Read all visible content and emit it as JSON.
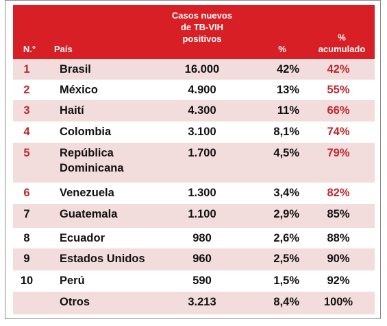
{
  "header": {
    "no": "N.°",
    "pais": "País",
    "casos": [
      "Casos nuevos",
      "de TB-VIH",
      "positivos"
    ],
    "pct": "%",
    "acum": [
      "%",
      "acumulado"
    ]
  },
  "rows": [
    {
      "no": "1",
      "pais": [
        "Brasil"
      ],
      "casos": "16.000",
      "pct": "42%",
      "acum": "42%",
      "red_no": true,
      "red_acum": true
    },
    {
      "no": "2",
      "pais": [
        "México"
      ],
      "casos": "4.900",
      "pct": "13%",
      "acum": "55%",
      "red_no": true,
      "red_acum": true
    },
    {
      "no": "3",
      "pais": [
        "Haití"
      ],
      "casos": "4.300",
      "pct": "11%",
      "acum": "66%",
      "red_no": true,
      "red_acum": true
    },
    {
      "no": "4",
      "pais": [
        "Colombia"
      ],
      "casos": "3.100",
      "pct": "8,1%",
      "acum": "74%",
      "red_no": true,
      "red_acum": true
    },
    {
      "no": "5",
      "pais": [
        "República",
        "Dominicana"
      ],
      "casos": "1.700",
      "pct": "4,5%",
      "acum": "79%",
      "red_no": true,
      "red_acum": true
    },
    {
      "no": "6",
      "pais": [
        "Venezuela"
      ],
      "casos": "1.300",
      "pct": "3,4%",
      "acum": "82%",
      "red_no": true,
      "red_acum": true
    },
    {
      "no": "7",
      "pais": [
        "Guatemala"
      ],
      "casos": "1.100",
      "pct": "2,9%",
      "acum": "85%",
      "red_no": false,
      "red_acum": false
    },
    {
      "no": "8",
      "pais": [
        "Ecuador"
      ],
      "casos": "980",
      "pct": "2,6%",
      "acum": "88%",
      "red_no": false,
      "red_acum": false
    },
    {
      "no": "9",
      "pais": [
        "Estados Unidos"
      ],
      "casos": "960",
      "pct": "2,5%",
      "acum": "90%",
      "red_no": false,
      "red_acum": false
    },
    {
      "no": "10",
      "pais": [
        "Perú"
      ],
      "casos": "590",
      "pct": "1,5%",
      "acum": "92%",
      "red_no": false,
      "red_acum": false
    },
    {
      "no": "",
      "pais": [
        "Otros"
      ],
      "casos": "3.213",
      "pct": "8,4%",
      "acum": "100%",
      "red_no": false,
      "red_acum": false
    }
  ],
  "colors": {
    "header_bg": "#d91f26",
    "shade": "#f2dcdc",
    "accent_red": "#c0262c"
  }
}
